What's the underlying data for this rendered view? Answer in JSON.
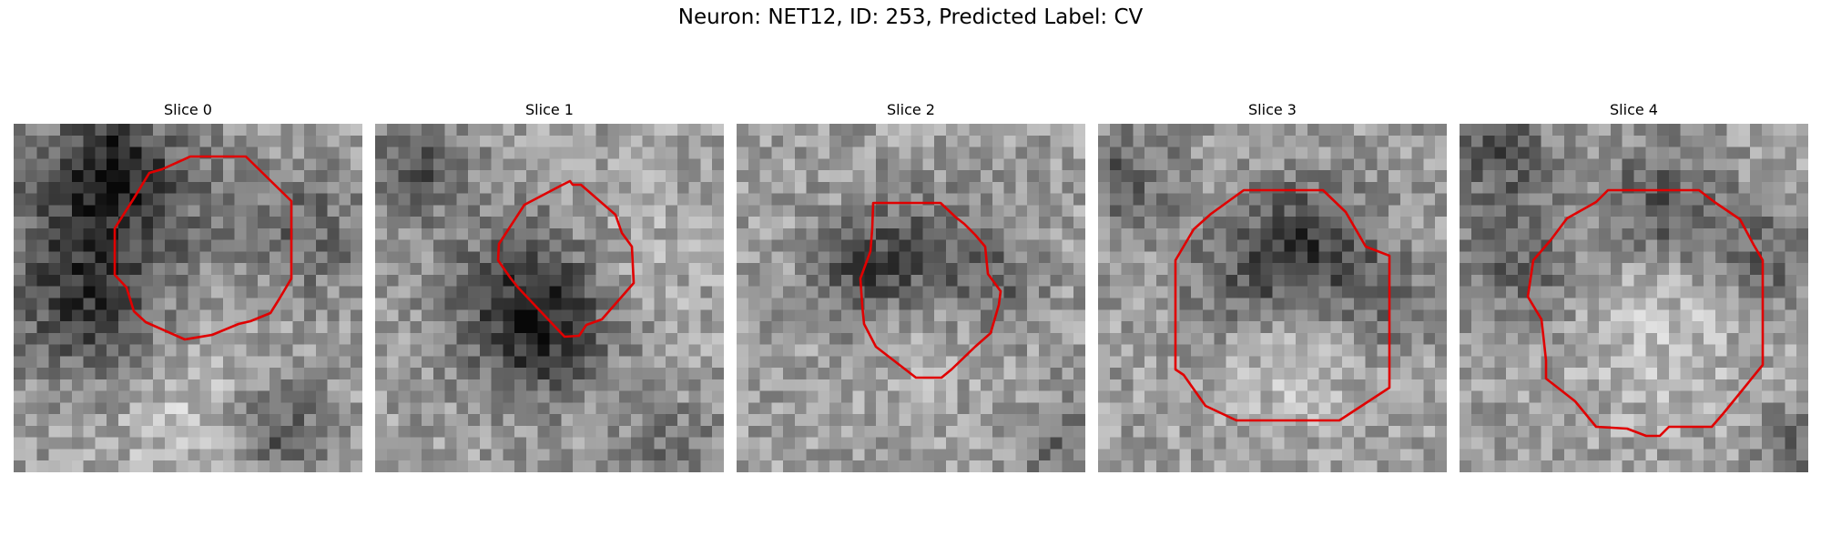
{
  "figure": {
    "title": "Neuron: NET12, ID: 253, Predicted Label: CV"
  },
  "colors": {
    "contour": "#e00000",
    "colormap": "gray"
  },
  "panels": [
    {
      "title": "Slice 0",
      "image": "grayscale microscopy patch",
      "overlay": "red ROI contour"
    },
    {
      "title": "Slice 1",
      "image": "grayscale microscopy patch",
      "overlay": "red ROI contour"
    },
    {
      "title": "Slice 2",
      "image": "grayscale microscopy patch",
      "overlay": "red ROI contour"
    },
    {
      "title": "Slice 3",
      "image": "grayscale microscopy patch",
      "overlay": "red ROI contour"
    },
    {
      "title": "Slice 4",
      "image": "grayscale microscopy patch",
      "overlay": "red ROI contour"
    }
  ]
}
